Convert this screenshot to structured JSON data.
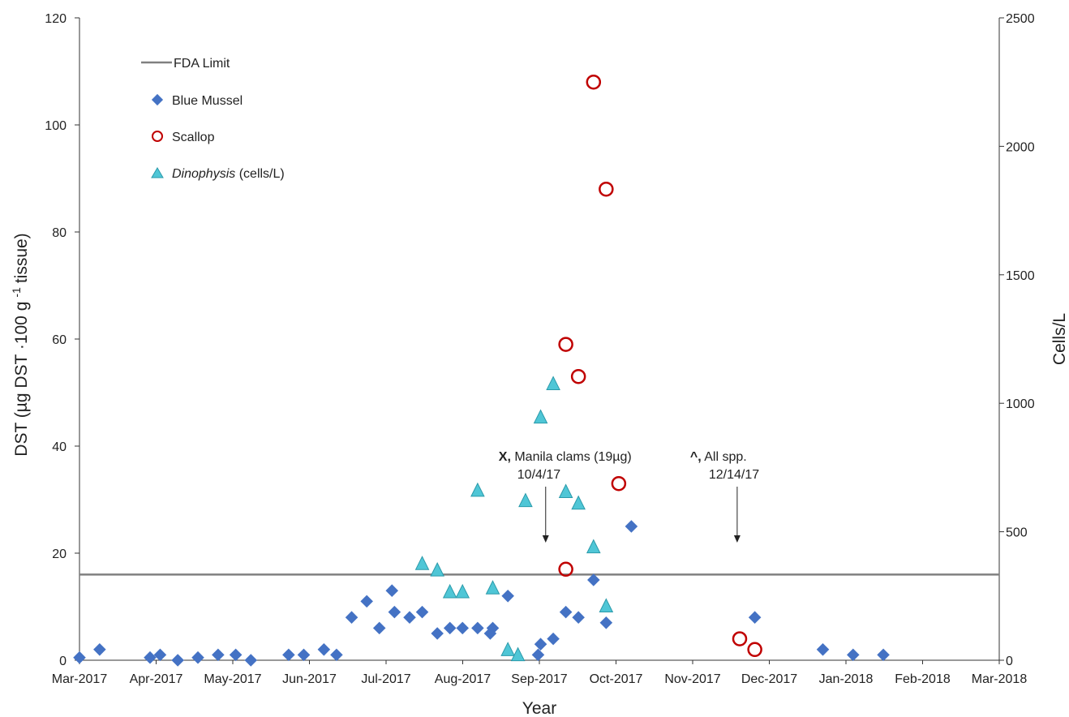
{
  "chart_data": {
    "type": "scatter",
    "x_axis": {
      "label": "Year",
      "range": [
        "2017-03-01",
        "2018-03-01"
      ],
      "tick_labels": [
        "Mar-2017",
        "Apr-2017",
        "May-2017",
        "Jun-2017",
        "Jul-2017",
        "Aug-2017",
        "Sep-2017",
        "Oct-2017",
        "Nov-2017",
        "Dec-2017",
        "Jan-2018",
        "Feb-2018",
        "Mar-2018"
      ]
    },
    "y_axis_left": {
      "label": "DST (µg DST ·100 g -1 tissue)",
      "label_main": "DST (µg DST ·100 g",
      "label_sup": "-1",
      "label_tail": "tissue)",
      "range": [
        0,
        120
      ],
      "tick_labels": [
        "0",
        "20",
        "40",
        "60",
        "80",
        "100",
        "120"
      ]
    },
    "y_axis_right": {
      "label": "Cells/L",
      "range": [
        0,
        2500
      ],
      "tick_labels": [
        "0",
        "500",
        "1000",
        "1500",
        "2000",
        "2500"
      ]
    },
    "grid": false,
    "legend_position": "top-left",
    "reference_line": {
      "name": "FDA Limit",
      "axis": "left",
      "value": 16,
      "color": "#808080"
    },
    "series": [
      {
        "name": "Blue Mussel",
        "axis": "left",
        "marker": "diamond",
        "color": "#4472C4",
        "points": [
          {
            "x": "2017-03-01",
            "y": 0.5
          },
          {
            "x": "2017-03-09",
            "y": 2
          },
          {
            "x": "2017-03-29",
            "y": 0.5
          },
          {
            "x": "2017-04-02",
            "y": 1
          },
          {
            "x": "2017-04-09",
            "y": 0
          },
          {
            "x": "2017-04-17",
            "y": 0.5
          },
          {
            "x": "2017-04-25",
            "y": 1
          },
          {
            "x": "2017-05-02",
            "y": 1
          },
          {
            "x": "2017-05-08",
            "y": 0
          },
          {
            "x": "2017-05-23",
            "y": 1
          },
          {
            "x": "2017-05-29",
            "y": 1
          },
          {
            "x": "2017-06-06",
            "y": 2
          },
          {
            "x": "2017-06-11",
            "y": 1
          },
          {
            "x": "2017-06-17",
            "y": 8
          },
          {
            "x": "2017-06-23",
            "y": 11
          },
          {
            "x": "2017-06-28",
            "y": 6
          },
          {
            "x": "2017-07-03",
            "y": 13
          },
          {
            "x": "2017-07-04",
            "y": 9
          },
          {
            "x": "2017-07-10",
            "y": 8
          },
          {
            "x": "2017-07-15",
            "y": 9
          },
          {
            "x": "2017-07-21",
            "y": 5
          },
          {
            "x": "2017-07-26",
            "y": 6
          },
          {
            "x": "2017-07-31",
            "y": 6
          },
          {
            "x": "2017-08-06",
            "y": 6
          },
          {
            "x": "2017-08-11",
            "y": 5
          },
          {
            "x": "2017-08-12",
            "y": 6
          },
          {
            "x": "2017-08-18",
            "y": 12
          },
          {
            "x": "2017-08-30",
            "y": 1
          },
          {
            "x": "2017-08-31",
            "y": 3
          },
          {
            "x": "2017-09-05",
            "y": 4
          },
          {
            "x": "2017-09-10",
            "y": 9
          },
          {
            "x": "2017-09-15",
            "y": 8
          },
          {
            "x": "2017-09-21",
            "y": 15
          },
          {
            "x": "2017-09-26",
            "y": 7
          },
          {
            "x": "2017-10-06",
            "y": 25
          },
          {
            "x": "2017-11-24",
            "y": 8
          },
          {
            "x": "2017-12-21",
            "y": 2
          },
          {
            "x": "2018-01-02",
            "y": 1
          },
          {
            "x": "2018-01-14",
            "y": 1
          }
        ]
      },
      {
        "name": "Scallop",
        "axis": "left",
        "marker": "circle-open",
        "color": "#C00000",
        "points": [
          {
            "x": "2017-09-21",
            "y": 108
          },
          {
            "x": "2017-09-26",
            "y": 88
          },
          {
            "x": "2017-09-10",
            "y": 59
          },
          {
            "x": "2017-09-15",
            "y": 53
          },
          {
            "x": "2017-10-01",
            "y": 33
          },
          {
            "x": "2017-09-10",
            "y": 17
          },
          {
            "x": "2017-11-18",
            "y": 4
          },
          {
            "x": "2017-11-24",
            "y": 2
          }
        ]
      },
      {
        "name": "Dinophysis (cells/L)",
        "name_italic": "Dinophysis",
        "name_rest": " (cells/L)",
        "axis": "right",
        "marker": "triangle",
        "color": "#4FC6D6",
        "points": [
          {
            "x": "2017-07-15",
            "y": 375
          },
          {
            "x": "2017-07-21",
            "y": 350
          },
          {
            "x": "2017-07-26",
            "y": 265
          },
          {
            "x": "2017-07-31",
            "y": 265
          },
          {
            "x": "2017-08-06",
            "y": 660
          },
          {
            "x": "2017-08-12",
            "y": 280
          },
          {
            "x": "2017-08-18",
            "y": 40
          },
          {
            "x": "2017-08-22",
            "y": 20
          },
          {
            "x": "2017-08-25",
            "y": 620
          },
          {
            "x": "2017-08-31",
            "y": 945
          },
          {
            "x": "2017-09-05",
            "y": 1075
          },
          {
            "x": "2017-09-10",
            "y": 655
          },
          {
            "x": "2017-09-15",
            "y": 610
          },
          {
            "x": "2017-09-21",
            "y": 440
          },
          {
            "x": "2017-09-26",
            "y": 210
          }
        ]
      }
    ],
    "annotations": [
      {
        "bold": "X,",
        "text": " Manila clams (19µg)",
        "date": "10/4/17",
        "arrow_at": "2017-09-02"
      },
      {
        "bold": "^,",
        "text": " All spp.",
        "date": "12/14/17",
        "arrow_at": "2017-11-17"
      }
    ]
  }
}
